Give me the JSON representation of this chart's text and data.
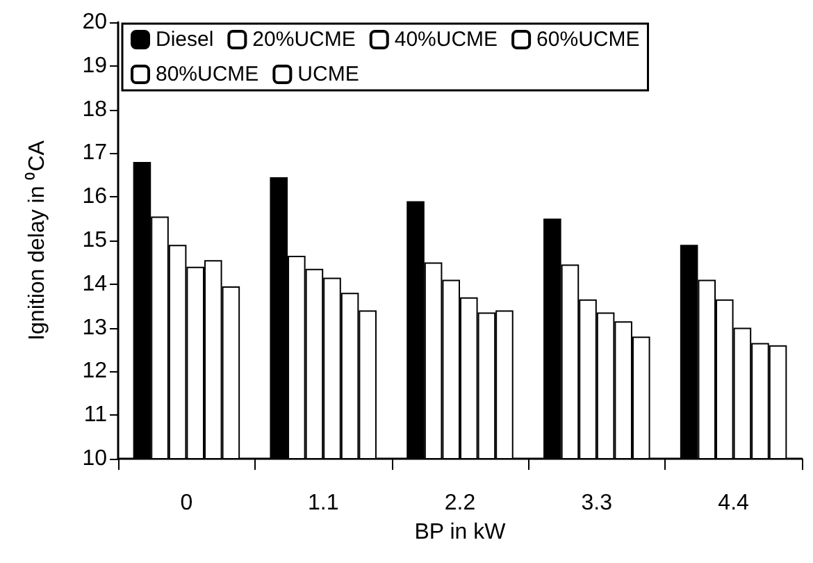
{
  "chart_data": {
    "type": "bar",
    "xlabel": "BP in kW",
    "ylabel": "Ignition delay in ⁰CA",
    "categories": [
      "0",
      "1.1",
      "2.2",
      "3.3",
      "4.4"
    ],
    "series": [
      {
        "name": "Diesel",
        "color": "#000000",
        "values": [
          16.8,
          16.45,
          15.9,
          15.5,
          14.9
        ]
      },
      {
        "name": "20%UCME",
        "color": "#ffffff",
        "values": [
          15.55,
          14.65,
          14.5,
          14.45,
          14.1
        ]
      },
      {
        "name": "40%UCME",
        "color": "#ffffff",
        "values": [
          14.9,
          14.35,
          14.1,
          13.65,
          13.65
        ]
      },
      {
        "name": "60%UCME",
        "color": "#ffffff",
        "values": [
          14.4,
          14.15,
          13.7,
          13.35,
          13.0
        ]
      },
      {
        "name": "80%UCME",
        "color": "#ffffff",
        "values": [
          14.55,
          13.8,
          13.35,
          13.15,
          12.65
        ]
      },
      {
        "name": "UCME",
        "color": "#ffffff",
        "values": [
          13.95,
          13.4,
          13.4,
          12.8,
          12.6
        ]
      }
    ],
    "ylim": [
      10,
      20
    ],
    "yticks": [
      10,
      11,
      12,
      13,
      14,
      15,
      16,
      17,
      18,
      19,
      20
    ],
    "grid": false,
    "legend": "top"
  }
}
